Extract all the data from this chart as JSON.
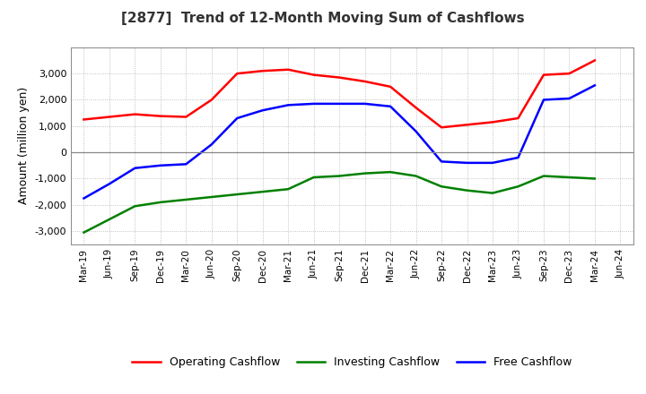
{
  "title": "[2877]  Trend of 12-Month Moving Sum of Cashflows",
  "ylabel": "Amount (million yen)",
  "xlabels": [
    "Mar-19",
    "Jun-19",
    "Sep-19",
    "Dec-19",
    "Mar-20",
    "Jun-20",
    "Sep-20",
    "Dec-20",
    "Mar-21",
    "Jun-21",
    "Sep-21",
    "Dec-21",
    "Mar-22",
    "Jun-22",
    "Sep-22",
    "Dec-22",
    "Mar-23",
    "Jun-23",
    "Sep-23",
    "Dec-23",
    "Mar-24",
    "Jun-24"
  ],
  "operating": [
    1250,
    1350,
    1450,
    1380,
    1350,
    2000,
    3000,
    3100,
    3150,
    2950,
    2850,
    2700,
    2500,
    1700,
    950,
    1050,
    1150,
    1300,
    2950,
    3000,
    3500,
    null
  ],
  "investing": [
    -3050,
    -2550,
    -2050,
    -1900,
    -1800,
    -1700,
    -1600,
    -1500,
    -1400,
    -950,
    -900,
    -800,
    -750,
    -900,
    -1300,
    -1450,
    -1550,
    -1300,
    -900,
    -950,
    -1000,
    null
  ],
  "free": [
    -1750,
    -1200,
    -600,
    -500,
    -450,
    300,
    1300,
    1600,
    1800,
    1850,
    1850,
    1850,
    1750,
    800,
    -350,
    -400,
    -400,
    -200,
    2000,
    2050,
    2550,
    null
  ],
  "line_colors": {
    "operating": "#ff0000",
    "investing": "#008000",
    "free": "#0000ff"
  },
  "ylim": [
    -3500,
    4000
  ],
  "yticks": [
    -3000,
    -2000,
    -1000,
    0,
    1000,
    2000,
    3000
  ],
  "background_color": "#ffffff",
  "grid_color": "#b0b0b0",
  "legend_labels": [
    "Operating Cashflow",
    "Investing Cashflow",
    "Free Cashflow"
  ]
}
